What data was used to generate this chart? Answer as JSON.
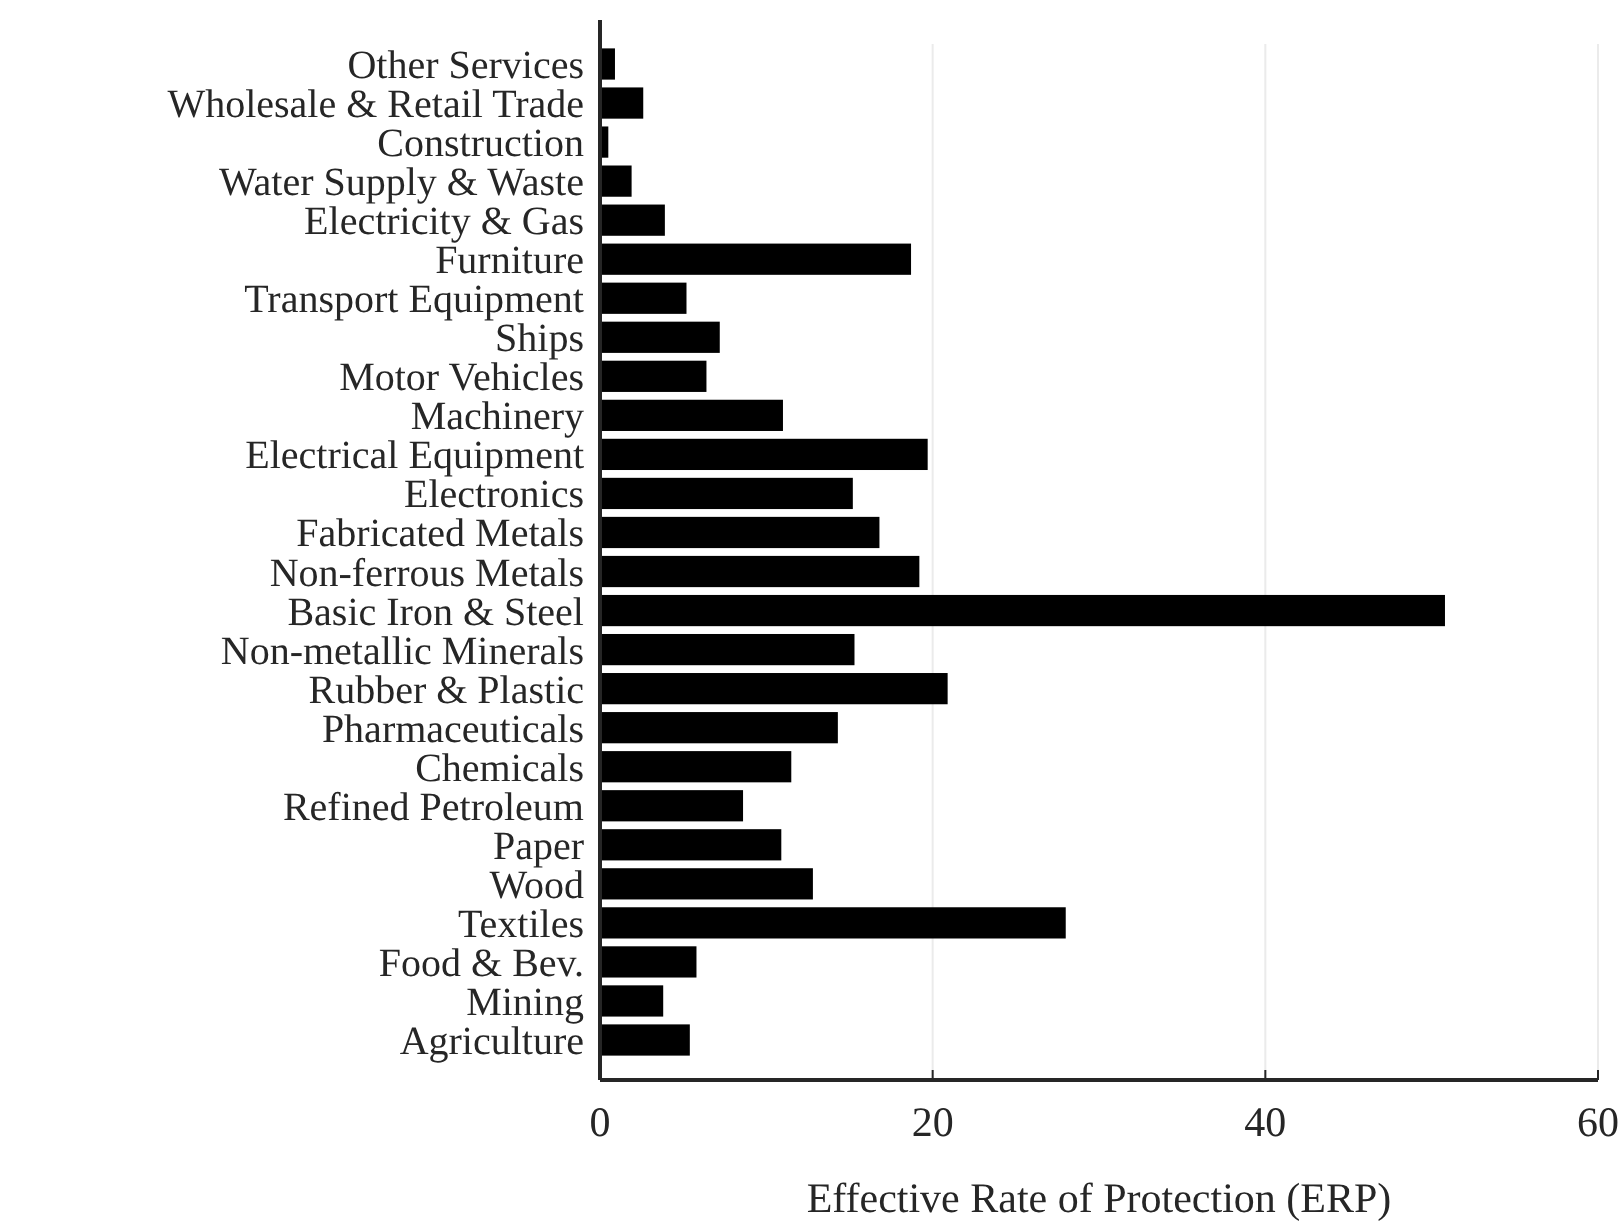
{
  "chart_data": {
    "type": "bar",
    "orientation": "horizontal",
    "xlabel": "Effective Rate of Protection (ERP)",
    "categories": [
      "Other Services",
      "Wholesale & Retail Trade",
      "Construction",
      "Water Supply & Waste",
      "Electricity & Gas",
      "Furniture",
      "Transport Equipment",
      "Ships",
      "Motor Vehicles",
      "Machinery",
      "Electrical Equipment",
      "Electronics",
      "Fabricated Metals",
      "Non-ferrous Metals",
      "Basic Iron & Steel",
      "Non-metallic Minerals",
      "Rubber & Plastic",
      "Pharmaceuticals",
      "Chemicals",
      "Refined Petroleum",
      "Paper",
      "Wood",
      "Textiles",
      "Food & Bev.",
      "Mining",
      "Agriculture"
    ],
    "values": [
      0.9,
      2.6,
      0.5,
      1.9,
      3.9,
      18.7,
      5.2,
      7.2,
      6.4,
      11.0,
      19.7,
      15.2,
      16.8,
      19.2,
      50.8,
      15.3,
      20.9,
      14.3,
      11.5,
      8.6,
      10.9,
      12.8,
      28.0,
      5.8,
      3.8,
      5.4
    ],
    "color": "#000000",
    "xlim": [
      0,
      60
    ],
    "xticks": [
      0,
      20,
      40,
      60
    ],
    "grid": "x"
  }
}
